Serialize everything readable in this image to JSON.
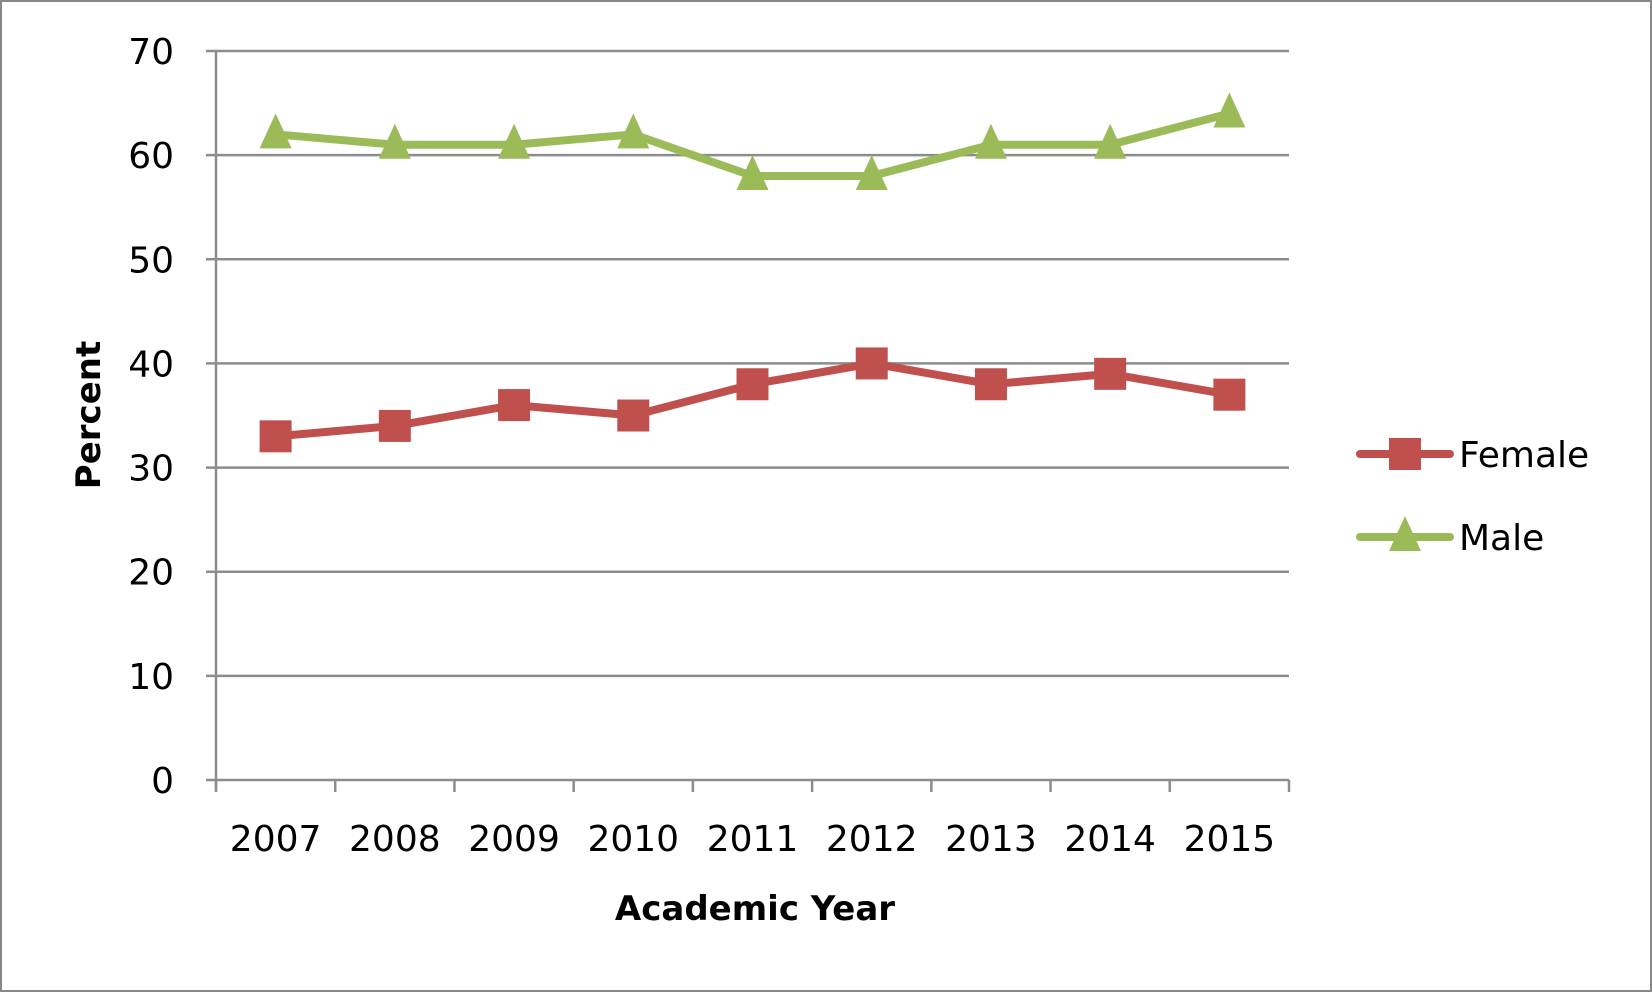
{
  "chart_data": {
    "type": "line",
    "title": "",
    "xlabel": "Academic Year",
    "ylabel": "Percent",
    "categories": [
      "2007",
      "2008",
      "2009",
      "2010",
      "2011",
      "2012",
      "2013",
      "2014",
      "2015"
    ],
    "ylim": [
      0,
      70
    ],
    "yticks": [
      0,
      10,
      20,
      30,
      40,
      50,
      60,
      70
    ],
    "grid": true,
    "legend_position": "right",
    "series": [
      {
        "name": "Female",
        "color": "#C0504D",
        "marker": "square",
        "values": [
          33,
          34,
          36,
          35,
          38,
          40,
          38,
          39,
          37
        ]
      },
      {
        "name": "Male",
        "color": "#9BBB59",
        "marker": "triangle",
        "values": [
          62,
          61,
          61,
          62,
          58,
          58,
          61,
          61,
          64
        ]
      }
    ]
  }
}
